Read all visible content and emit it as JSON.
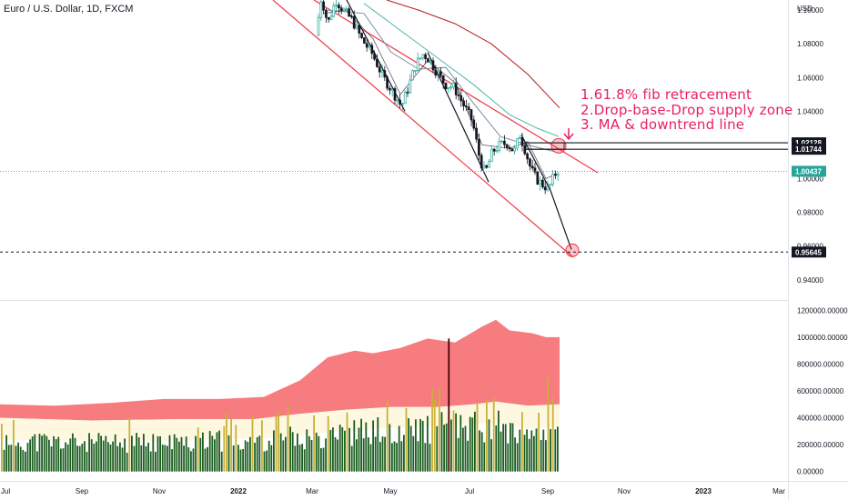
{
  "header": {
    "title": "Euro / U.S. Dollar, 1D, FXCM"
  },
  "annotations": [
    "1.61.8% fib retracement",
    "2.Drop-base-Drop supply zone",
    "3. MA & downtrend line"
  ],
  "chart_data": [
    {
      "type": "candlestick",
      "name": "price",
      "currency_label": "USD",
      "ylim": [
        0.928,
        1.106
      ],
      "x_ticks": [
        "Jul",
        "Sep",
        "Nov",
        "2022",
        "Mar",
        "May",
        "Jul",
        "Sep",
        "Nov",
        "2023",
        "Mar"
      ],
      "y_ticks": [
        "1.10000",
        "1.08000",
        "1.06000",
        "1.04000",
        "1.02000",
        "1.00000",
        "0.98000",
        "0.96000",
        "0.94000"
      ],
      "price_labels": [
        {
          "value": 1.02128,
          "label": "1.02128",
          "style": "level"
        },
        {
          "value": 1.01744,
          "label": "1.01744",
          "style": "level"
        },
        {
          "value": 1.00437,
          "label": "1.00437",
          "style": "last"
        },
        {
          "value": 0.95645,
          "label": "0.95645",
          "style": "target"
        }
      ],
      "last_price": 1.00437,
      "target_price": 0.95645,
      "supply_zone": [
        1.01744,
        1.02128
      ],
      "channel_color": "#f23645",
      "candle_up_color": "#26a69a",
      "candle_down_color": "#131722"
    },
    {
      "type": "volume",
      "name": "volume",
      "ylim": [
        -70000,
        1270000
      ],
      "y_ticks": [
        "1200000.00000",
        "1000000.00000",
        "800000.00000",
        "600000.00000",
        "400000.00000",
        "200000.00000",
        "0.00000"
      ],
      "bar_color": "#1b5e20",
      "highlight_color": "#c9b037",
      "band_color": "#f77c80",
      "base_color": "#fff8e1"
    }
  ]
}
